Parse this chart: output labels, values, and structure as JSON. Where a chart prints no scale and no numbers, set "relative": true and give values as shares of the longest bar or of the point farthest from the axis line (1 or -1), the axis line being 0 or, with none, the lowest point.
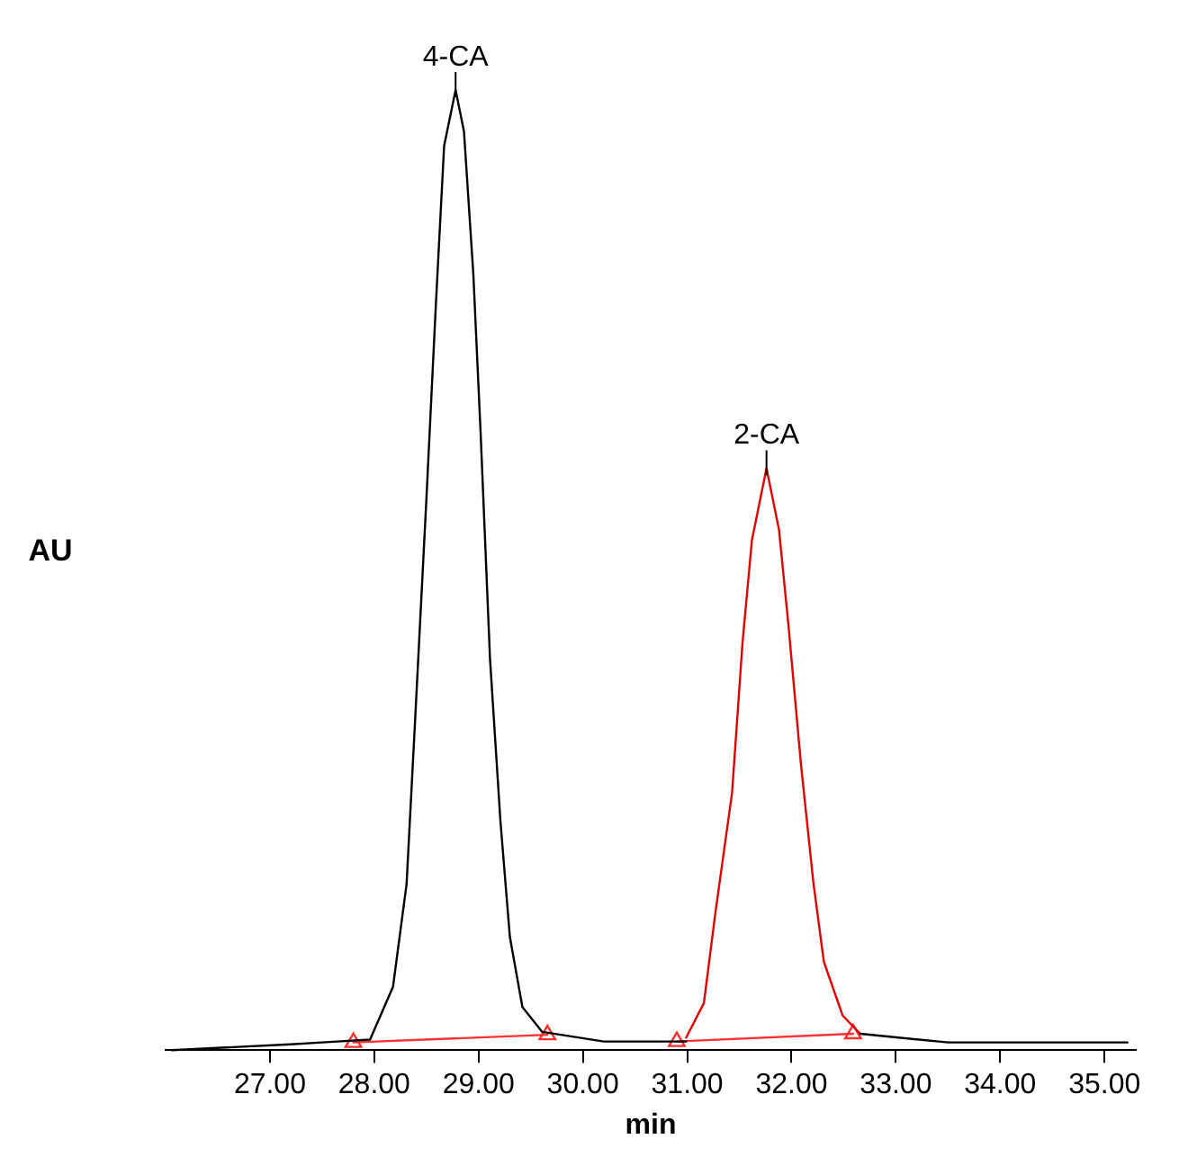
{
  "chart_data": {
    "type": "line",
    "relative": true,
    "xlabel": "min",
    "ylabel": "AU",
    "xlim": [
      26.0,
      35.3
    ],
    "xticks": [
      {
        "value": 27,
        "label": "27.00"
      },
      {
        "value": 28,
        "label": "28.00"
      },
      {
        "value": 29,
        "label": "29.00"
      },
      {
        "value": 30,
        "label": "30.00"
      },
      {
        "value": 31,
        "label": "31.00"
      },
      {
        "value": 32,
        "label": "32.00"
      },
      {
        "value": 33,
        "label": "33.00"
      },
      {
        "value": 34,
        "label": "34.00"
      },
      {
        "value": 35,
        "label": "35.00"
      }
    ],
    "grid": false,
    "legend": false,
    "marker": "none",
    "line_style": "solid",
    "series": [
      {
        "color": "#000000",
        "x": [
          26.06,
          27.2,
          27.5,
          27.96,
          28.18,
          28.31,
          28.39,
          28.5,
          28.59,
          28.67,
          28.78,
          28.86,
          28.95,
          29.02,
          29.11,
          29.21,
          29.3,
          29.42,
          29.61,
          30.2,
          30.99,
          null,
          32.66,
          33.5,
          34.5,
          35.22
        ],
        "values": [
          0,
          0.006,
          0.008,
          0.011,
          0.066,
          0.173,
          0.34,
          0.574,
          0.775,
          0.942,
          1.0,
          0.957,
          0.808,
          0.642,
          0.407,
          0.238,
          0.118,
          0.045,
          0.019,
          0.009,
          0.009,
          null,
          0.017,
          0.008,
          0.008,
          0.008
        ]
      },
      {
        "color": "#e00000",
        "x": [
          30.99,
          31.16,
          31.27,
          31.43,
          31.53,
          31.62,
          31.76,
          31.88,
          31.97,
          32.09,
          32.21,
          32.31,
          32.49,
          32.66
        ],
        "values": [
          0.013,
          0.049,
          0.143,
          0.268,
          0.424,
          0.531,
          0.606,
          0.542,
          0.443,
          0.298,
          0.174,
          0.092,
          0.036,
          0.017
        ]
      },
      {
        "color": "#ff3030",
        "marker": "triangle",
        "x": [
          27.8,
          29.66
        ],
        "values": [
          0.008,
          0.016
        ]
      },
      {
        "color": "#ff3030",
        "marker": "triangle",
        "x": [
          30.9,
          32.59
        ],
        "values": [
          0.009,
          0.017
        ]
      }
    ],
    "annotations": [
      {
        "text": "4-CA",
        "x": 28.78,
        "y": 1.0
      },
      {
        "text": "2-CA",
        "x": 31.76,
        "y": 0.606
      }
    ]
  }
}
